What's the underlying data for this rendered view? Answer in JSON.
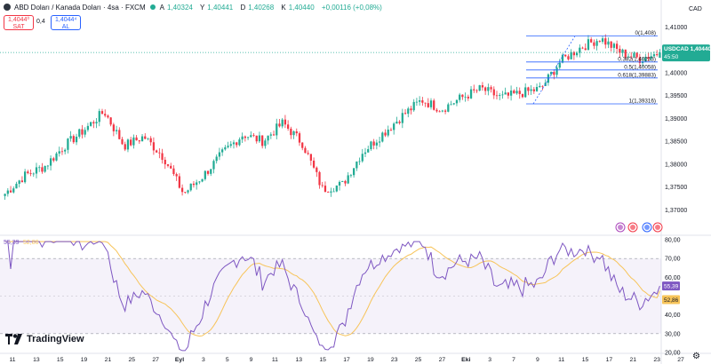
{
  "header": {
    "title": "ABD Doları / Kanada Doları · 4sa · FXCM",
    "ohlc": [
      {
        "label": "A",
        "value": "1,40324"
      },
      {
        "label": "Y",
        "value": "1,40441"
      },
      {
        "label": "D",
        "value": "1,40268"
      },
      {
        "label": "K",
        "value": "1,40440"
      },
      {
        "label": "",
        "value": "+0,00116 (+0,08%)"
      }
    ],
    "sell": {
      "price": "1,4044⁰",
      "label": "SAT"
    },
    "spread": "0,4",
    "buy": {
      "price": "1,4044⁴",
      "label": "AL"
    }
  },
  "currency": "CAD",
  "symbol_tag": {
    "symbol": "USDCAD",
    "price": "1,40440",
    "countdown": "45:50"
  },
  "rsi_labels": {
    "rsi": "55,39",
    "ma": "52,86"
  },
  "fib_levels": [
    {
      "label": "0(1,408)",
      "value": 1.408
    },
    {
      "label": "0.382(1,40233)",
      "value": 1.40233
    },
    {
      "label": "0.5(1,40058)",
      "value": 1.40058
    },
    {
      "label": "0.618(1,39883)",
      "value": 1.39883
    },
    {
      "label": "1(1,39316)",
      "value": 1.39316
    }
  ],
  "colors": {
    "up": "#22ab94",
    "down": "#f23645",
    "rsi": "#7e57c2",
    "rsi_ma": "#f7c45a",
    "fib": "#2962ff"
  },
  "icons": [
    "flash-icon",
    "calendar-event-icon",
    "us-flag-icon",
    "canada-flag-icon"
  ],
  "logo": "TradingView",
  "chart_data": [
    {
      "type": "candlestick",
      "title": "ABD Doları / Kanada Doları · 4sa · FXCM",
      "ylim": [
        1.365,
        1.412
      ],
      "y_ticks": [
        "1,41000",
        "1,40500",
        "1,40000",
        "1,39500",
        "1,39000",
        "1,38500",
        "1,38000",
        "1,37500",
        "1,37000"
      ],
      "x_ticks": [
        "11",
        "13",
        "15",
        "19",
        "21",
        "25",
        "27",
        "Eyl",
        "3",
        "5",
        "9",
        "11",
        "13",
        "15",
        "17",
        "19",
        "23",
        "25",
        "27",
        "Eki",
        "3",
        "7",
        "9",
        "11",
        "15",
        "17",
        "21",
        "23",
        "27"
      ],
      "anchor_closes": [
        {
          "x": "11",
          "close": 1.3735
        },
        {
          "x": "13",
          "close": 1.3775
        },
        {
          "x": "15",
          "close": 1.3795
        },
        {
          "x": "19",
          "close": 1.384
        },
        {
          "x": "21",
          "close": 1.3875
        },
        {
          "x": "23",
          "close": 1.3915
        },
        {
          "x": "24",
          "close": 1.384
        },
        {
          "x": "25",
          "close": 1.386
        },
        {
          "x": "27",
          "close": 1.3815
        },
        {
          "x": "Eyl",
          "close": 1.3735
        },
        {
          "x": "3",
          "close": 1.3775
        },
        {
          "x": "5",
          "close": 1.3825
        },
        {
          "x": "9",
          "close": 1.3865
        },
        {
          "x": "11",
          "close": 1.385
        },
        {
          "x": "13",
          "close": 1.389
        },
        {
          "x": "15",
          "close": 1.3845
        },
        {
          "x": "17",
          "close": 1.3745
        },
        {
          "x": "19",
          "close": 1.3755
        },
        {
          "x": "23",
          "close": 1.3825
        },
        {
          "x": "25",
          "close": 1.3865
        },
        {
          "x": "27",
          "close": 1.3905
        },
        {
          "x": "30",
          "close": 1.394
        },
        {
          "x": "Eki",
          "close": 1.392
        },
        {
          "x": "3",
          "close": 1.3945
        },
        {
          "x": "5",
          "close": 1.3965
        },
        {
          "x": "7",
          "close": 1.3945
        },
        {
          "x": "9",
          "close": 1.3955
        },
        {
          "x": "10",
          "close": 1.3965
        },
        {
          "x": "11",
          "close": 1.4025
        },
        {
          "x": "13",
          "close": 1.4055
        },
        {
          "x": "14",
          "close": 1.4075
        },
        {
          "x": "15",
          "close": 1.4045
        },
        {
          "x": "17",
          "close": 1.403
        },
        {
          "x": "18",
          "close": 1.4044
        }
      ],
      "last_close": 1.4044,
      "last_change": 0.00116
    },
    {
      "type": "line",
      "title": "RSI",
      "ylim": [
        20,
        80
      ],
      "y_ticks": [
        "80,00",
        "70,00",
        "60,00",
        "40,00",
        "30,00",
        "20,00"
      ],
      "bands": [
        30,
        70
      ],
      "series": [
        {
          "name": "RSI",
          "last": 55.39
        },
        {
          "name": "RSI MA",
          "last": 52.86
        }
      ]
    }
  ]
}
